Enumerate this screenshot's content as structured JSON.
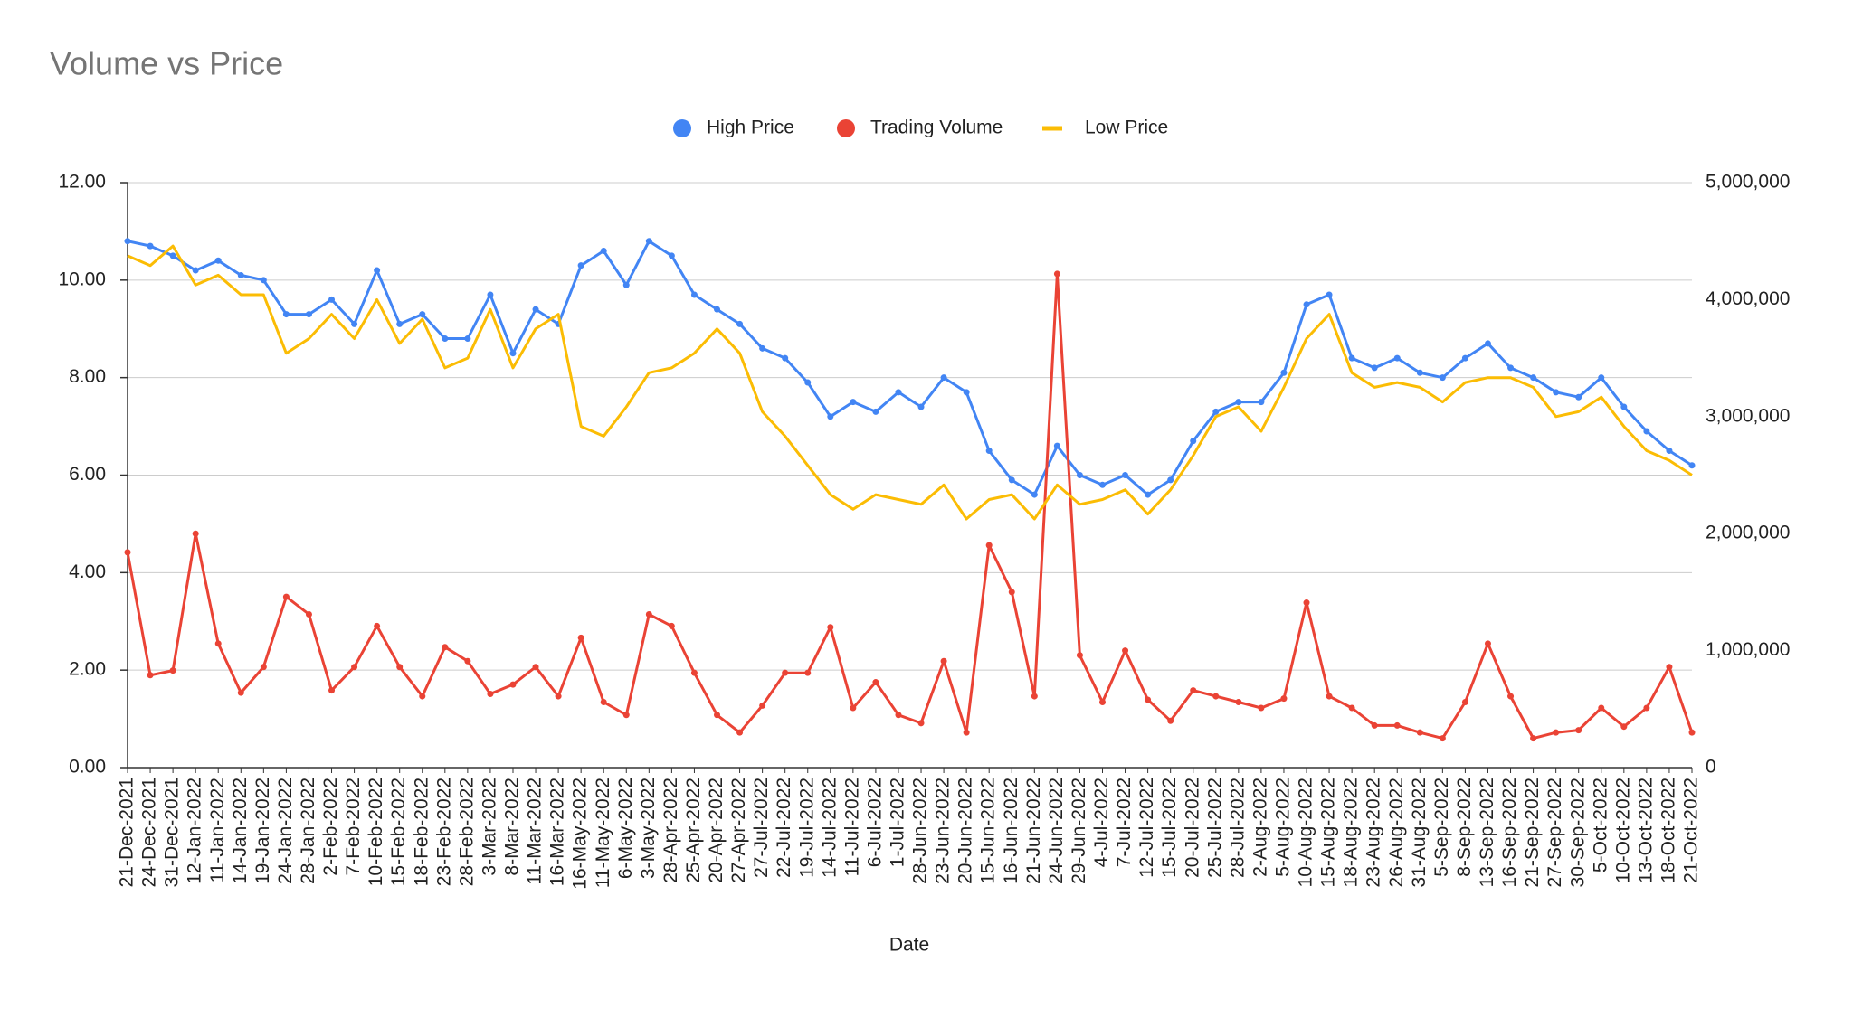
{
  "chart_data": {
    "type": "line",
    "title": "Volume vs Price",
    "xlabel": "Date",
    "categories": [
      "21-Dec-2021",
      "24-Dec-2021",
      "31-Dec-2021",
      "12-Jan-2022",
      "11-Jan-2022",
      "14-Jan-2022",
      "19-Jan-2022",
      "24-Jan-2022",
      "28-Jan-2022",
      "2-Feb-2022",
      "7-Feb-2022",
      "10-Feb-2022",
      "15-Feb-2022",
      "18-Feb-2022",
      "23-Feb-2022",
      "28-Feb-2022",
      "3-Mar-2022",
      "8-Mar-2022",
      "11-Mar-2022",
      "16-Mar-2022",
      "16-May-2022",
      "11-May-2022",
      "6-May-2022",
      "3-May-2022",
      "28-Apr-2022",
      "25-Apr-2022",
      "20-Apr-2022",
      "27-Apr-2022",
      "27-Jul-2022",
      "22-Jul-2022",
      "19-Jul-2022",
      "14-Jul-2022",
      "11-Jul-2022",
      "6-Jul-2022",
      "1-Jul-2022",
      "28-Jun-2022",
      "23-Jun-2022",
      "20-Jun-2022",
      "15-Jun-2022",
      "16-Jun-2022",
      "21-Jun-2022",
      "24-Jun-2022",
      "29-Jun-2022",
      "4-Jul-2022",
      "7-Jul-2022",
      "12-Jul-2022",
      "15-Jul-2022",
      "20-Jul-2022",
      "25-Jul-2022",
      "28-Jul-2022",
      "2-Aug-2022",
      "5-Aug-2022",
      "10-Aug-2022",
      "15-Aug-2022",
      "18-Aug-2022",
      "23-Aug-2022",
      "26-Aug-2022",
      "31-Aug-2022",
      "5-Sep-2022",
      "8-Sep-2022",
      "13-Sep-2022",
      "16-Sep-2022",
      "21-Sep-2022",
      "27-Sep-2022",
      "30-Sep-2022",
      "5-Oct-2022",
      "10-Oct-2022",
      "13-Oct-2022",
      "18-Oct-2022",
      "21-Oct-2022"
    ],
    "series": [
      {
        "name": "High Price",
        "color": "#4285f4",
        "marker": true,
        "values": [
          10.8,
          10.7,
          10.5,
          10.2,
          10.4,
          10.1,
          10.0,
          9.3,
          9.3,
          9.6,
          9.1,
          10.2,
          9.1,
          9.3,
          8.8,
          8.8,
          9.7,
          8.5,
          9.4,
          9.1,
          10.3,
          10.6,
          9.9,
          10.8,
          10.5,
          9.7,
          9.4,
          9.1,
          8.6,
          8.4,
          7.9,
          7.2,
          7.5,
          7.3,
          7.7,
          7.4,
          8.0,
          7.7,
          6.5,
          5.9,
          5.6,
          6.6,
          6.0,
          5.8,
          6.0,
          5.6,
          5.9,
          6.7,
          7.3,
          7.5,
          7.5,
          8.1,
          9.5,
          9.7,
          8.4,
          8.2,
          8.4,
          8.1,
          8.0,
          8.4,
          8.7,
          8.2,
          8.0,
          7.7,
          7.6,
          8.0,
          7.4,
          6.9,
          6.5,
          6.2
        ]
      },
      {
        "name": "Trading Volume",
        "color": "#ea4335",
        "marker": true,
        "axis": "y2",
        "values": [
          1840000,
          790000,
          830000,
          2000000,
          1060000,
          640000,
          860000,
          1460000,
          1310000,
          660000,
          860000,
          1210000,
          860000,
          610000,
          1030000,
          910000,
          630000,
          710000,
          860000,
          610000,
          1110000,
          560000,
          450000,
          1310000,
          1210000,
          810000,
          450000,
          300000,
          530000,
          810000,
          810000,
          1200000,
          510000,
          730000,
          450000,
          380000,
          910000,
          300000,
          1900000,
          1500000,
          610000,
          4220000,
          960000,
          560000,
          1000000,
          580000,
          400000,
          660000,
          610000,
          560000,
          510000,
          590000,
          1410000,
          610000,
          510000,
          360000,
          360000,
          300000,
          250000,
          560000,
          1060000,
          610000,
          250000,
          300000,
          320000,
          510000,
          350000,
          510000,
          860000,
          300000
        ]
      },
      {
        "name": "Low Price",
        "color": "#fbbc04",
        "marker": false,
        "values": [
          10.5,
          10.3,
          10.7,
          9.9,
          10.1,
          9.7,
          9.7,
          8.5,
          8.8,
          9.3,
          8.8,
          9.6,
          8.7,
          9.2,
          8.2,
          8.4,
          9.4,
          8.2,
          9.0,
          9.3,
          7.0,
          6.8,
          7.4,
          8.1,
          8.2,
          8.5,
          9.0,
          8.5,
          7.3,
          6.8,
          6.2,
          5.6,
          5.3,
          5.6,
          5.5,
          5.4,
          5.8,
          5.1,
          5.5,
          5.6,
          5.1,
          5.8,
          5.4,
          5.5,
          5.7,
          5.2,
          5.7,
          6.4,
          7.2,
          7.4,
          6.9,
          7.8,
          8.8,
          9.3,
          8.1,
          7.8,
          7.9,
          7.8,
          7.5,
          7.9,
          8.0,
          8.0,
          7.8,
          7.2,
          7.3,
          7.6,
          7.0,
          6.5,
          6.3,
          6.0
        ]
      }
    ],
    "ylim": [
      0,
      12
    ],
    "yticks": [
      {
        "value": 0,
        "label": "0.00"
      },
      {
        "value": 2,
        "label": "2.00"
      },
      {
        "value": 4,
        "label": "4.00"
      },
      {
        "value": 6,
        "label": "6.00"
      },
      {
        "value": 8,
        "label": "8.00"
      },
      {
        "value": 10,
        "label": "10.00"
      },
      {
        "value": 12,
        "label": "12.00"
      }
    ],
    "y2lim": [
      0,
      5000000
    ],
    "y2ticks": [
      0,
      {
        "value": 1000000,
        "label": "1,000,000"
      },
      {
        "value": 2000000,
        "label": "2,000,000"
      },
      {
        "value": 3000000,
        "label": "3,000,000"
      },
      {
        "value": 4000000,
        "label": "4,000,000"
      },
      {
        "value": 5000000,
        "label": "5,000,000"
      }
    ],
    "grid": true,
    "legend": "top"
  }
}
